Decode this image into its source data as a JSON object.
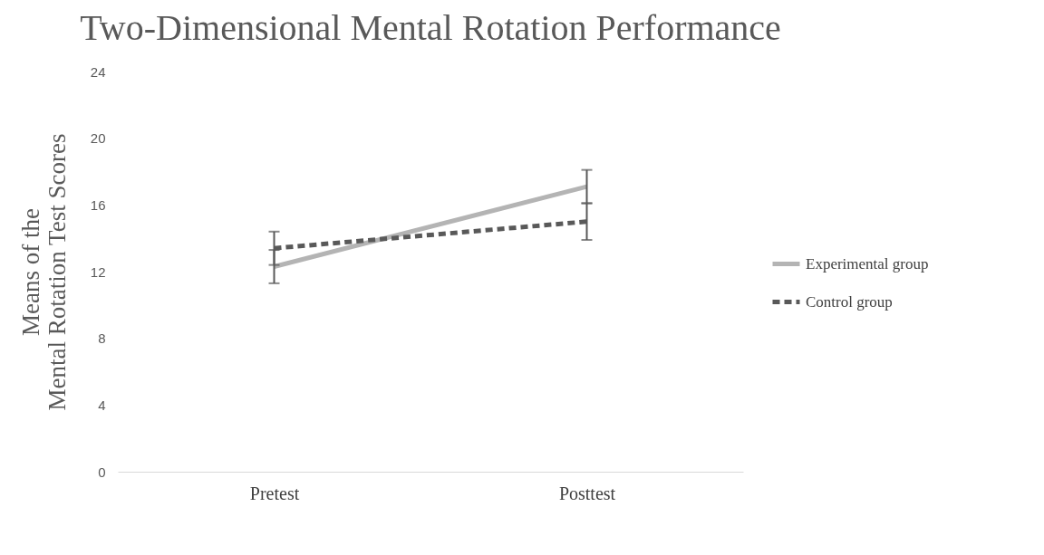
{
  "chart_data": {
    "type": "line",
    "title": "Two-Dimensional Mental Rotation Performance",
    "ylabel": "Means of the\nMental Rotation Test Scores",
    "categories": [
      "Pretest",
      "Posttest"
    ],
    "series": [
      {
        "name": "Experimental group",
        "color": "#b4b4b4",
        "line_style": "solid",
        "values": [
          12.3,
          17.1
        ],
        "errors": [
          1,
          1
        ]
      },
      {
        "name": "Control group",
        "color": "#595959",
        "line_style": "dashed",
        "values": [
          13.4,
          15.0
        ],
        "errors": [
          1,
          1.1
        ]
      }
    ],
    "ylim": [
      0,
      24
    ],
    "yticks": [
      0,
      4,
      8,
      12,
      16,
      20,
      24
    ],
    "grid": false,
    "legend": "right",
    "marker": "none"
  }
}
